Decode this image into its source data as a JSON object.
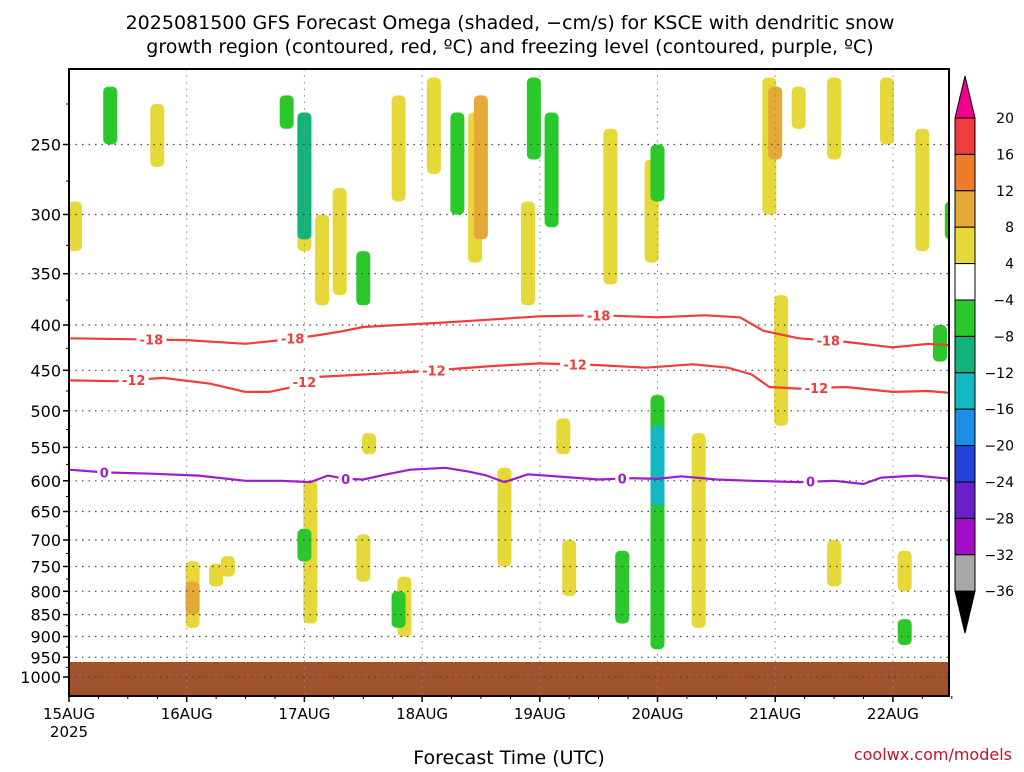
{
  "chart_data": {
    "type": "heatmap",
    "title_line1": "2025081500 GFS Forecast Omega (shaded, −cm/s) for KSCE with dendritic snow",
    "title_line2": "growth region (contoured, red, ºC) and freezing level (contoured, purple, ºC)",
    "xlabel": "Forecast Time (UTC)",
    "ylabel": "",
    "x_ticks": [
      "15AUG",
      "16AUG",
      "17AUG",
      "18AUG",
      "19AUG",
      "20AUG",
      "21AUG",
      "22AUG"
    ],
    "x_year_label": "2025",
    "x_range_days": [
      0,
      7.55
    ],
    "y_scale": "log-pressure",
    "y_ticks": [
      250,
      300,
      350,
      400,
      450,
      500,
      550,
      600,
      650,
      700,
      750,
      800,
      850,
      900,
      950,
      1000
    ],
    "y_range_hpa": [
      200,
      1030
    ],
    "grid": true,
    "colorbar": {
      "labels": [
        "20",
        "16",
        "12",
        "8",
        "4",
        "−4",
        "−8",
        "−12",
        "−16",
        "−20",
        "−24",
        "−28",
        "−32",
        "−36"
      ],
      "colors": [
        "#f0008c",
        "#ef3c3c",
        "#ee7d2a",
        "#e5a937",
        "#e6d838",
        "#ffffff",
        "#2bc82b",
        "#10b37a",
        "#12b8c2",
        "#1d8ee8",
        "#2244d8",
        "#6a1fc8",
        "#a00ec8",
        "#a8a8a8",
        "#000000"
      ]
    },
    "terrain_color": "#a0522d",
    "contours": [
      {
        "label": "-18",
        "color": "#ef3c3c",
        "label_positions_days": [
          0.7,
          1.9,
          4.5,
          6.45
        ],
        "points": [
          [
            0,
            414
          ],
          [
            0.5,
            415
          ],
          [
            1.0,
            416
          ],
          [
            1.5,
            420
          ],
          [
            1.8,
            416
          ],
          [
            2.1,
            411
          ],
          [
            2.3,
            407
          ],
          [
            2.5,
            402
          ],
          [
            2.8,
            400
          ],
          [
            3.1,
            398
          ],
          [
            3.5,
            395
          ],
          [
            4.0,
            391
          ],
          [
            4.5,
            390
          ],
          [
            5.0,
            392
          ],
          [
            5.4,
            390
          ],
          [
            5.7,
            392
          ],
          [
            5.9,
            406
          ],
          [
            6.2,
            414
          ],
          [
            6.6,
            418
          ],
          [
            7.0,
            424
          ],
          [
            7.3,
            420
          ],
          [
            7.55,
            422
          ]
        ]
      },
      {
        "label": "-12",
        "color": "#ef3c3c",
        "label_positions_days": [
          0.55,
          2.0,
          3.1,
          4.3,
          6.35
        ],
        "points": [
          [
            0,
            462
          ],
          [
            0.4,
            463
          ],
          [
            0.8,
            459
          ],
          [
            1.2,
            466
          ],
          [
            1.5,
            476
          ],
          [
            1.7,
            476
          ],
          [
            1.9,
            470
          ],
          [
            2.1,
            458
          ],
          [
            2.5,
            455
          ],
          [
            2.9,
            452
          ],
          [
            3.3,
            448
          ],
          [
            3.6,
            445
          ],
          [
            4.0,
            442
          ],
          [
            4.5,
            444
          ],
          [
            4.9,
            447
          ],
          [
            5.3,
            443
          ],
          [
            5.6,
            447
          ],
          [
            5.8,
            455
          ],
          [
            5.95,
            470
          ],
          [
            6.2,
            472
          ],
          [
            6.6,
            470
          ],
          [
            7.0,
            476
          ],
          [
            7.3,
            475
          ],
          [
            7.55,
            478
          ]
        ]
      },
      {
        "label": "0",
        "color": "#9b1fc8",
        "label_positions_days": [
          0.3,
          2.35,
          4.7,
          6.3
        ],
        "points": [
          [
            0,
            583
          ],
          [
            0.3,
            587
          ],
          [
            0.7,
            589
          ],
          [
            1.1,
            592
          ],
          [
            1.5,
            600
          ],
          [
            1.8,
            600
          ],
          [
            2.05,
            602
          ],
          [
            2.2,
            592
          ],
          [
            2.35,
            597
          ],
          [
            2.5,
            598
          ],
          [
            2.7,
            590
          ],
          [
            2.9,
            583
          ],
          [
            3.2,
            580
          ],
          [
            3.4,
            586
          ],
          [
            3.55,
            592
          ],
          [
            3.7,
            602
          ],
          [
            3.9,
            590
          ],
          [
            4.2,
            594
          ],
          [
            4.5,
            598
          ],
          [
            4.8,
            596
          ],
          [
            5.0,
            597
          ],
          [
            5.2,
            593
          ],
          [
            5.5,
            598
          ],
          [
            5.8,
            600
          ],
          [
            6.2,
            602
          ],
          [
            6.5,
            600
          ],
          [
            6.75,
            605
          ],
          [
            6.9,
            595
          ],
          [
            7.2,
            592
          ],
          [
            7.55,
            598
          ]
        ]
      }
    ],
    "omega_cells": [
      {
        "day": 0.05,
        "p_top": 290,
        "p_bot": 330,
        "level": "4"
      },
      {
        "day": 0.35,
        "p_top": 215,
        "p_bot": 250,
        "level": "-4"
      },
      {
        "day": 0.75,
        "p_top": 225,
        "p_bot": 265,
        "level": "4"
      },
      {
        "day": 1.05,
        "p_top": 740,
        "p_bot": 880,
        "level": "4"
      },
      {
        "day": 1.05,
        "p_top": 780,
        "p_bot": 850,
        "level": "8"
      },
      {
        "day": 1.25,
        "p_top": 745,
        "p_bot": 790,
        "level": "4"
      },
      {
        "day": 1.35,
        "p_top": 730,
        "p_bot": 770,
        "level": "4"
      },
      {
        "day": 1.85,
        "p_top": 220,
        "p_bot": 240,
        "level": "-4"
      },
      {
        "day": 2.0,
        "p_top": 230,
        "p_bot": 330,
        "level": "4"
      },
      {
        "day": 2.15,
        "p_top": 300,
        "p_bot": 380,
        "level": "4"
      },
      {
        "day": 2.0,
        "p_top": 230,
        "p_bot": 320,
        "level": "-8"
      },
      {
        "day": 2.05,
        "p_top": 600,
        "p_bot": 870,
        "level": "4"
      },
      {
        "day": 2.0,
        "p_top": 680,
        "p_bot": 740,
        "level": "-4"
      },
      {
        "day": 2.3,
        "p_top": 280,
        "p_bot": 370,
        "level": "4"
      },
      {
        "day": 2.5,
        "p_top": 330,
        "p_bot": 380,
        "level": "-4"
      },
      {
        "day": 2.55,
        "p_top": 530,
        "p_bot": 560,
        "level": "4"
      },
      {
        "day": 2.5,
        "p_top": 690,
        "p_bot": 780,
        "level": "4"
      },
      {
        "day": 2.8,
        "p_top": 220,
        "p_bot": 290,
        "level": "4"
      },
      {
        "day": 2.85,
        "p_top": 770,
        "p_bot": 900,
        "level": "4"
      },
      {
        "day": 2.8,
        "p_top": 800,
        "p_bot": 880,
        "level": "-4"
      },
      {
        "day": 3.1,
        "p_top": 210,
        "p_bot": 270,
        "level": "4"
      },
      {
        "day": 3.3,
        "p_top": 230,
        "p_bot": 300,
        "level": "-4"
      },
      {
        "day": 3.45,
        "p_top": 230,
        "p_bot": 340,
        "level": "4"
      },
      {
        "day": 3.5,
        "p_top": 220,
        "p_bot": 320,
        "level": "8"
      },
      {
        "day": 3.7,
        "p_top": 580,
        "p_bot": 750,
        "level": "4"
      },
      {
        "day": 3.9,
        "p_top": 290,
        "p_bot": 380,
        "level": "4"
      },
      {
        "day": 3.95,
        "p_top": 210,
        "p_bot": 260,
        "level": "-4"
      },
      {
        "day": 4.1,
        "p_top": 230,
        "p_bot": 310,
        "level": "-4"
      },
      {
        "day": 4.2,
        "p_top": 510,
        "p_bot": 560,
        "level": "4"
      },
      {
        "day": 4.25,
        "p_top": 700,
        "p_bot": 810,
        "level": "4"
      },
      {
        "day": 4.7,
        "p_top": 720,
        "p_bot": 870,
        "level": "-4"
      },
      {
        "day": 4.6,
        "p_top": 240,
        "p_bot": 360,
        "level": "4"
      },
      {
        "day": 4.95,
        "p_top": 260,
        "p_bot": 340,
        "level": "4"
      },
      {
        "day": 5.0,
        "p_top": 250,
        "p_bot": 290,
        "level": "-4"
      },
      {
        "day": 5.0,
        "p_top": 480,
        "p_bot": 930,
        "level": "-4"
      },
      {
        "day": 5.0,
        "p_top": 520,
        "p_bot": 640,
        "level": "-12"
      },
      {
        "day": 5.35,
        "p_top": 530,
        "p_bot": 880,
        "level": "4"
      },
      {
        "day": 5.95,
        "p_top": 210,
        "p_bot": 300,
        "level": "4"
      },
      {
        "day": 6.0,
        "p_top": 215,
        "p_bot": 260,
        "level": "8"
      },
      {
        "day": 6.2,
        "p_top": 215,
        "p_bot": 240,
        "level": "4"
      },
      {
        "day": 6.5,
        "p_top": 210,
        "p_bot": 260,
        "level": "4"
      },
      {
        "day": 6.05,
        "p_top": 370,
        "p_bot": 470,
        "level": "4"
      },
      {
        "day": 6.05,
        "p_top": 460,
        "p_bot": 520,
        "level": "4"
      },
      {
        "day": 6.5,
        "p_top": 700,
        "p_bot": 790,
        "level": "4"
      },
      {
        "day": 6.95,
        "p_top": 210,
        "p_bot": 250,
        "level": "4"
      },
      {
        "day": 7.25,
        "p_top": 240,
        "p_bot": 330,
        "level": "4"
      },
      {
        "day": 7.5,
        "p_top": 290,
        "p_bot": 320,
        "level": "-4"
      },
      {
        "day": 7.1,
        "p_top": 720,
        "p_bot": 800,
        "level": "4"
      },
      {
        "day": 7.1,
        "p_top": 860,
        "p_bot": 920,
        "level": "-4"
      },
      {
        "day": 7.4,
        "p_top": 400,
        "p_bot": 440,
        "level": "-4"
      },
      {
        "day": 7.55,
        "p_top": 380,
        "p_bot": 420,
        "level": "-4"
      }
    ]
  },
  "footer": {
    "credit": "coolwx.com/models"
  }
}
